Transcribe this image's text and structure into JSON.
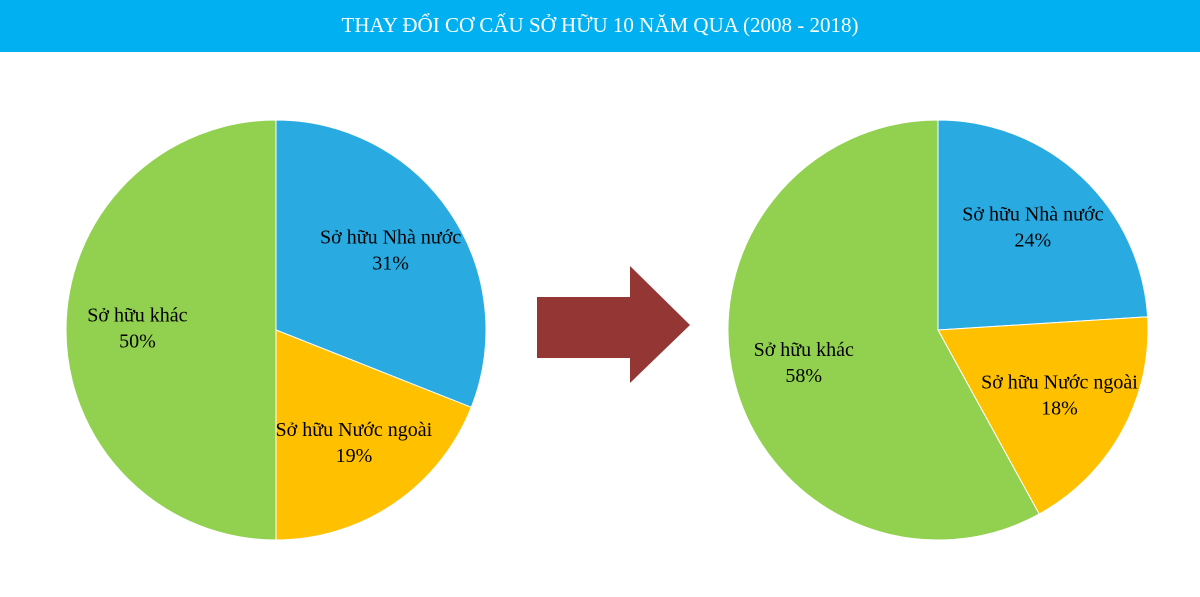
{
  "title": "THAY ĐỔI CƠ CẤU SỞ HỮU 10 NĂM QUA (2008 - 2018)",
  "chart_data": [
    {
      "type": "pie",
      "categories": [
        "Sở hữu Nhà nước",
        "Sở hữu Nước ngoài",
        "Sở hữu khác"
      ],
      "values": [
        31,
        19,
        50
      ],
      "value_labels": [
        "31%",
        "19%",
        "50%"
      ],
      "colors": [
        "#29abe2",
        "#ffc000",
        "#92d050"
      ]
    },
    {
      "type": "pie",
      "categories": [
        "Sở hữu Nhà nước",
        "Sở hữu Nước ngoài",
        "Sở hữu khác"
      ],
      "values": [
        24,
        18,
        58
      ],
      "value_labels": [
        "24%",
        "18%",
        "58%"
      ],
      "colors": [
        "#29abe2",
        "#ffc000",
        "#92d050"
      ]
    }
  ]
}
